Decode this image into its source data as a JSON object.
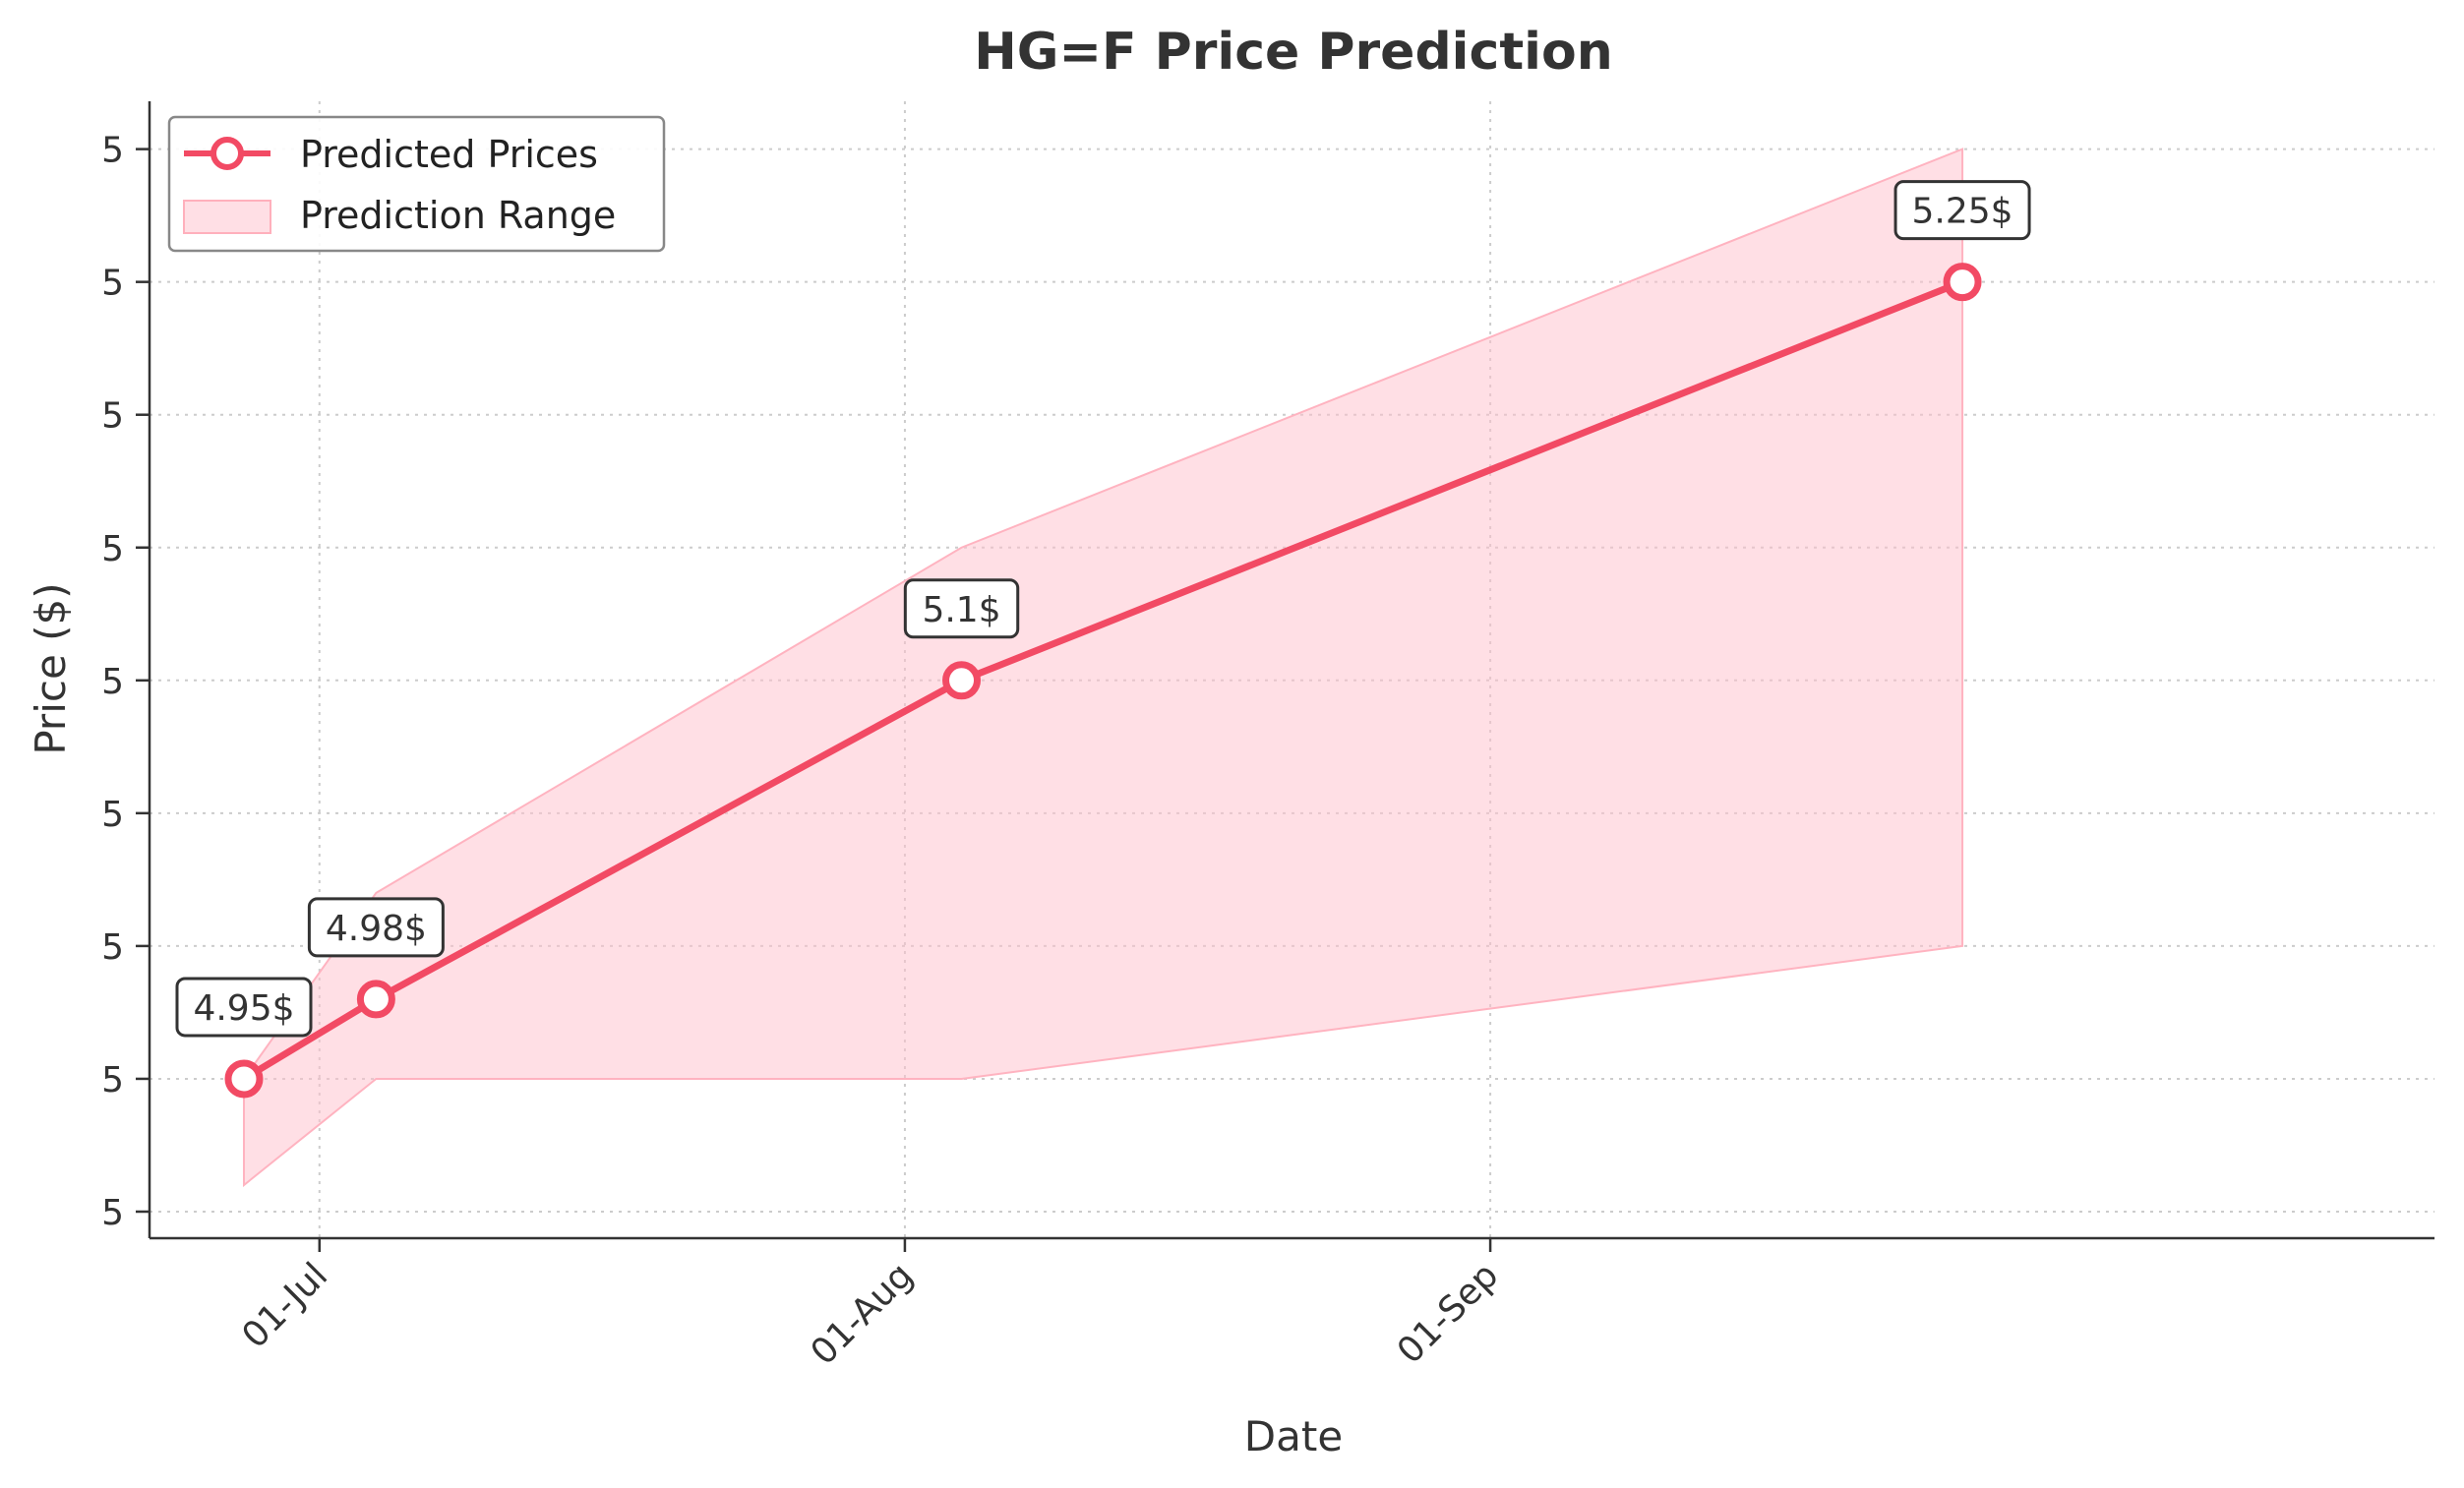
{
  "chart_data": {
    "type": "line",
    "title": "HG=F Price Prediction",
    "xlabel": "Date",
    "ylabel": "Price ($)",
    "x_ticks": [
      {
        "date": "2024-07-01",
        "label": "01-Jul"
      },
      {
        "date": "2024-08-01",
        "label": "01-Aug"
      },
      {
        "date": "2024-09-01",
        "label": "01-Sep"
      }
    ],
    "y_ticks": [
      4.9,
      4.95,
      5.0,
      5.05,
      5.1,
      5.15,
      5.2,
      5.25,
      5.3
    ],
    "y_tick_labels": [
      "5",
      "5",
      "5",
      "5",
      "5",
      "5",
      "5",
      "5",
      "5"
    ],
    "xlim": [
      "2024-06-22",
      "2024-10-21"
    ],
    "ylim": [
      4.89,
      5.318
    ],
    "grid": true,
    "legend_position": "top-left",
    "series": [
      {
        "name": "Predicted Prices",
        "color": "#f24a64",
        "points": [
          {
            "x": "2024-06-27",
            "y": 4.95,
            "label": "4.95$"
          },
          {
            "x": "2024-07-04",
            "y": 4.98,
            "label": "4.98$"
          },
          {
            "x": "2024-08-04",
            "y": 5.1,
            "label": "5.1$"
          },
          {
            "x": "2024-09-26",
            "y": 5.25,
            "label": "5.25$"
          }
        ]
      }
    ],
    "range": {
      "name": "Prediction Range",
      "color": "#ffc0cb",
      "x": [
        "2024-06-27",
        "2024-07-04",
        "2024-08-04",
        "2024-09-26"
      ],
      "lower": [
        4.91,
        4.95,
        4.95,
        5.0
      ],
      "upper": [
        4.95,
        5.02,
        5.15,
        5.3
      ]
    }
  }
}
